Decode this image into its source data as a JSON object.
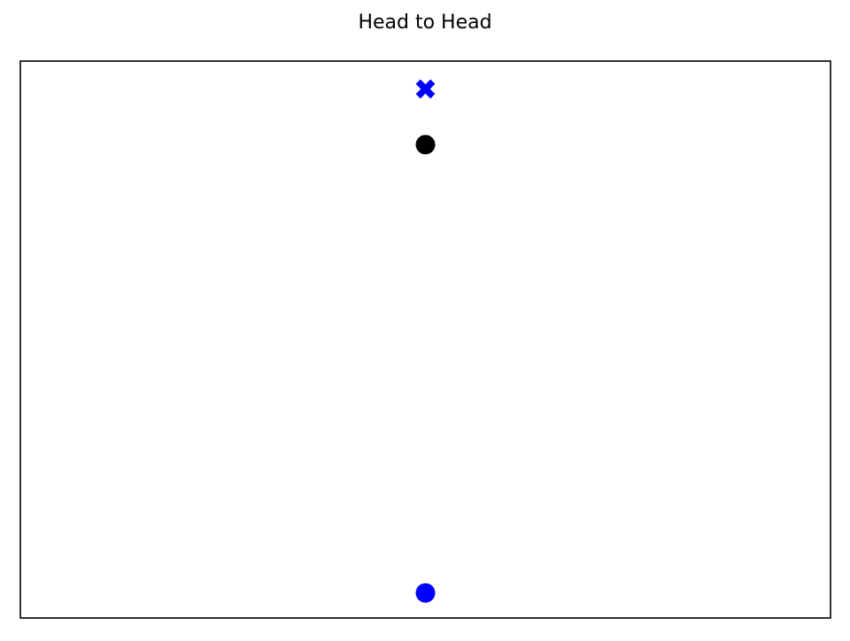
{
  "chart_data": {
    "type": "scatter",
    "title": "Head to Head",
    "xlabel": "",
    "ylabel": "",
    "xlim": [
      -1,
      1
    ],
    "ylim": [
      0,
      1
    ],
    "show_ticks": false,
    "grid": false,
    "series": [
      {
        "marker": "x-filled",
        "color": "#0000ff",
        "points": [
          {
            "x": 0,
            "y": 0.95
          }
        ]
      },
      {
        "marker": "circle",
        "color": "#000000",
        "points": [
          {
            "x": 0,
            "y": 0.85
          }
        ]
      },
      {
        "marker": "circle",
        "color": "#0000ff",
        "points": [
          {
            "x": 0,
            "y": 0.045
          }
        ]
      }
    ]
  }
}
